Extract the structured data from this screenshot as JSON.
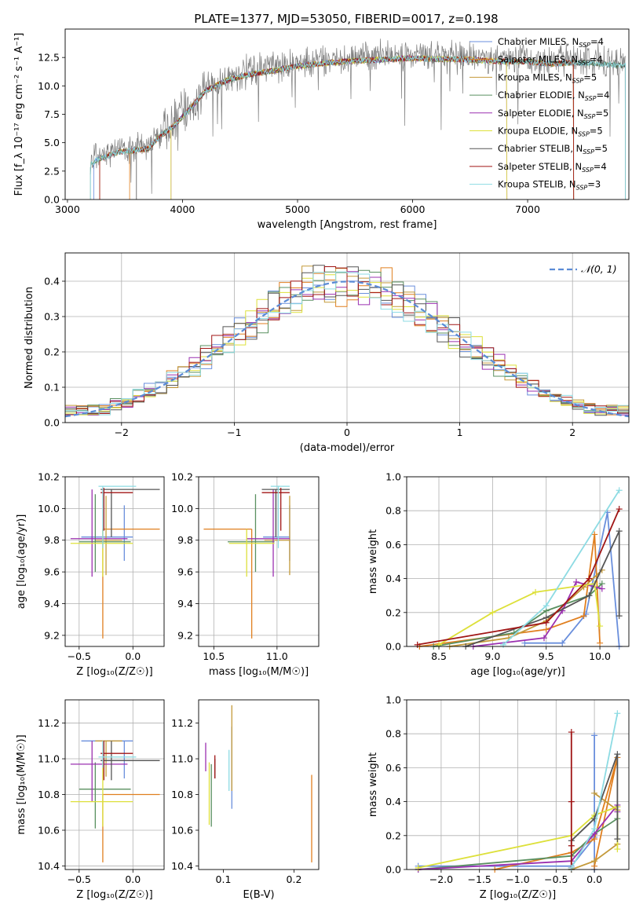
{
  "figure_title": "PLATE=1377, MJD=53050, FIBERID=0017, z=0.198",
  "colors": {
    "Chabrier MILES": "#6a8fdc",
    "Salpeter MILES": "#e07f1f",
    "Kroupa MILES": "#c49a3a",
    "Chabrier ELODIE": "#5a9060",
    "Salpeter ELODIE": "#9b30b0",
    "Kroupa ELODIE": "#dde03a",
    "Chabrier STELIB": "#555555",
    "Salpeter STELIB": "#a01515",
    "Kroupa STELIB": "#8ddbe3",
    "normal": "#5b8bd6",
    "grid": "#b0b0b0",
    "data": "#7f7f7f"
  },
  "chart_data": [
    {
      "type": "line",
      "title": "PLATE=1377, MJD=53050, FIBERID=0017, z=0.198",
      "xlabel": "wavelength [Angstrom, rest frame]",
      "ylabel": "Flux [f_λ 10⁻¹⁷ erg cm⁻² s⁻¹ A⁻¹]",
      "xlim": [
        2980,
        7880
      ],
      "ylim": [
        0,
        15
      ],
      "xticks": [
        "3000",
        "4000",
        "5000",
        "6000",
        "7000"
      ],
      "yticks": [
        "0.0",
        "2.5",
        "5.0",
        "7.5",
        "10.0",
        "12.5"
      ],
      "grid": false,
      "legend_position": "right",
      "legend": [
        {
          "label": "Chabrier MILES, N",
          "n": "4"
        },
        {
          "label": "Salpeter MILES, N",
          "n": "4"
        },
        {
          "label": "Kroupa MILES, N",
          "n": "5"
        },
        {
          "label": "Chabrier ELODIE, N",
          "n": "4"
        },
        {
          "label": "Salpeter ELODIE, N",
          "n": "5"
        },
        {
          "label": "Kroupa ELODIE, N",
          "n": "5"
        },
        {
          "label": "Chabrier STELIB, N",
          "n": "5"
        },
        {
          "label": "Salpeter STELIB, N",
          "n": "4"
        },
        {
          "label": "Kroupa STELIB, N",
          "n": "3"
        }
      ],
      "legend_sub": "SSP",
      "legend_eq": "=",
      "spectrum_envelope": {
        "x": [
          3200,
          3250,
          3400,
          3500,
          3600,
          3700,
          3800,
          3900,
          4000,
          4200,
          4400,
          4600,
          4800,
          5000,
          5200,
          5400,
          5600,
          5800,
          6000,
          6200,
          6400,
          6600,
          6800,
          7000,
          7200,
          7400,
          7600,
          7850
        ],
        "y": [
          3.3,
          3.7,
          4.3,
          4.5,
          4.6,
          4.7,
          5.8,
          6.5,
          7.5,
          9.8,
          10.8,
          11.3,
          11.6,
          12.0,
          12.2,
          12.4,
          12.5,
          12.6,
          12.7,
          12.6,
          12.6,
          12.5,
          12.4,
          12.4,
          12.2,
          12.3,
          12.2,
          12.0
        ]
      },
      "model_ranges": [
        [
          3230,
          7400
        ],
        [
          3540,
          7400
        ],
        [
          3280,
          7400
        ],
        [
          3200,
          7850
        ],
        [
          3900,
          6820
        ],
        [
          3900,
          6820
        ],
        [
          3600,
          7850
        ],
        [
          3280,
          7400
        ],
        [
          3200,
          7850
        ]
      ]
    },
    {
      "type": "bar",
      "title": "",
      "xlabel": "(data-model)/error",
      "ylabel": "Normed distribution",
      "xlim": [
        -2.5,
        2.5
      ],
      "ylim": [
        0,
        0.48
      ],
      "xticks": [
        "−2",
        "−1",
        "0",
        "1",
        "2"
      ],
      "yticks": [
        "0.0",
        "0.1",
        "0.2",
        "0.3",
        "0.4"
      ],
      "grid": true,
      "legend": [
        "𝒩(0, 1)"
      ],
      "legend_position": "top-right",
      "bin_width": 0.1,
      "bin_start": -2.5
    },
    {
      "type": "scatter",
      "xlabel": "Z [log₁₀(Z/Z☉)]",
      "ylabel": "age  [log₁₀(age/yr)]",
      "xlim": [
        -0.63,
        0.29
      ],
      "ylim": [
        9.13,
        10.2
      ],
      "xticks": [
        "−0.5",
        "0.0"
      ],
      "yticks": [
        "9.2",
        "9.4",
        "9.6",
        "9.8",
        "10.0",
        "10.2"
      ],
      "grid": true
    },
    {
      "type": "scatter",
      "xlabel": "mass [log₁₀(M/M☉)]",
      "ylabel": "",
      "xlim": [
        10.38,
        11.33
      ],
      "ylim": [
        9.13,
        10.2
      ],
      "xticks": [
        "10.5",
        "11.0"
      ],
      "yticks": [
        "9.2",
        "9.4",
        "9.6",
        "9.8",
        "10.0",
        "10.2"
      ],
      "grid": true
    },
    {
      "type": "line",
      "xlabel": "age  [log₁₀(age/yr)]",
      "ylabel": "mass weight",
      "xlim": [
        8.2,
        10.27
      ],
      "ylim": [
        0,
        1.0
      ],
      "xticks": [
        "8.5",
        "9.0",
        "9.5",
        "10.0"
      ],
      "yticks": [
        "0.0",
        "0.2",
        "0.4",
        "0.6",
        "0.8",
        "1.0"
      ],
      "grid": true
    },
    {
      "type": "scatter",
      "xlabel": "Z [log₁₀(Z/Z☉)]",
      "ylabel": "mass [log₁₀(M/M☉)]",
      "xlim": [
        -0.63,
        0.29
      ],
      "ylim": [
        10.38,
        11.33
      ],
      "xticks": [
        "−0.5",
        "0.0"
      ],
      "yticks": [
        "10.4",
        "10.6",
        "10.8",
        "11.0",
        "11.2"
      ],
      "grid": true
    },
    {
      "type": "scatter",
      "xlabel": "E(B-V)",
      "ylabel": "",
      "xlim": [
        0.065,
        0.235
      ],
      "ylim": [
        10.38,
        11.33
      ],
      "xticks": [
        "0.1",
        "0.2"
      ],
      "yticks": [
        "10.4",
        "10.6",
        "10.8",
        "11.0",
        "11.2"
      ],
      "grid": false
    },
    {
      "type": "line",
      "xlabel": "Z [log₁₀(Z/Z☉)]",
      "ylabel": "mass weight",
      "xlim": [
        -2.45,
        0.45
      ],
      "ylim": [
        0,
        1.0
      ],
      "xticks": [
        "−2.0",
        "−1.5",
        "−1.0",
        "−0.5",
        "0.0"
      ],
      "yticks": [
        "0.0",
        "0.2",
        "0.4",
        "0.6",
        "0.8",
        "1.0"
      ],
      "grid": true
    }
  ],
  "pointest": {
    "order": [
      "Chabrier MILES",
      "Salpeter MILES",
      "Kroupa MILES",
      "Chabrier ELODIE",
      "Salpeter ELODIE",
      "Kroupa ELODIE",
      "Chabrier STELIB",
      "Salpeter STELIB",
      "Kroupa STELIB"
    ],
    "Z": [
      [
        -0.08,
        -0.48,
        0.0
      ],
      [
        -0.28,
        -0.28,
        0.25
      ],
      [
        -0.25,
        -0.35,
        -0.1
      ],
      [
        -0.35,
        -0.5,
        -0.02
      ],
      [
        -0.38,
        -0.58,
        -0.05
      ],
      [
        -0.28,
        -0.58,
        0.0
      ],
      [
        -0.2,
        -0.3,
        0.25
      ],
      [
        -0.27,
        -0.3,
        0.0
      ],
      [
        -0.28,
        -0.32,
        0.03
      ]
    ],
    "age": [
      [
        9.82,
        9.67,
        10.02
      ],
      [
        9.87,
        9.18,
        9.87
      ],
      [
        9.8,
        9.58,
        10.08
      ],
      [
        9.79,
        9.6,
        10.09
      ],
      [
        9.81,
        9.57,
        10.12
      ],
      [
        9.78,
        9.57,
        9.87
      ],
      [
        10.12,
        9.82,
        10.12
      ],
      [
        10.1,
        9.86,
        10.13
      ],
      [
        10.14,
        9.75,
        10.14
      ]
    ],
    "mass": [
      [
        11.1,
        10.89,
        11.1
      ],
      [
        10.8,
        10.42,
        10.8
      ],
      [
        11.1,
        10.9,
        11.1
      ],
      [
        10.83,
        10.61,
        10.98
      ],
      [
        10.97,
        10.76,
        11.1
      ],
      [
        10.76,
        10.62,
        10.98
      ],
      [
        10.99,
        10.88,
        11.1
      ],
      [
        11.03,
        10.88,
        11.1
      ],
      [
        11.01,
        10.95,
        11.1
      ]
    ],
    "ebv": [
      [
        0.112,
        10.72,
        11.18
      ],
      [
        0.225,
        10.42,
        10.91
      ],
      [
        0.112,
        10.82,
        11.3
      ],
      [
        0.083,
        10.62,
        10.97
      ],
      [
        0.075,
        10.93,
        11.09
      ],
      [
        0.08,
        10.63,
        10.98
      ],
      [
        0.088,
        10.89,
        11.0
      ],
      [
        0.088,
        10.89,
        11.02
      ],
      [
        0.108,
        10.82,
        11.05
      ]
    ]
  },
  "weights": {
    "Chabrier MILES": {
      "age": [
        9.3,
        9.65,
        9.87,
        10.07,
        10.18
      ],
      "Z": [
        -2.3,
        -0.3,
        0.0,
        0.0,
        0.0
      ],
      "w": [
        0.02,
        0.02,
        0.19,
        0.79,
        0.0
      ]
    },
    "Salpeter MILES": {
      "age": [
        8.32,
        9.5,
        9.85,
        9.95,
        10.0
      ],
      "Z": [
        -1.3,
        -0.3,
        0.0,
        0.3,
        0.0
      ],
      "w": [
        0.0,
        0.1,
        0.18,
        0.66,
        0.02
      ]
    },
    "Kroupa MILES": {
      "age": [
        8.6,
        9.15,
        9.5,
        9.85,
        10.02
      ],
      "Z": [
        -0.3,
        0.0,
        0.3,
        0.3,
        0.0
      ],
      "w": [
        0.0,
        0.05,
        0.15,
        0.35,
        0.45
      ]
    },
    "Chabrier ELODIE": {
      "age": [
        8.45,
        9.2,
        9.5,
        9.9,
        10.02
      ],
      "Z": [
        -2.3,
        -0.3,
        0.0,
        0.3,
        0.3
      ],
      "w": [
        0.0,
        0.08,
        0.21,
        0.3,
        0.37
      ]
    },
    "Salpeter ELODIE": {
      "age": [
        8.82,
        9.48,
        9.65,
        9.78,
        10.02
      ],
      "Z": [
        -2.3,
        -0.3,
        0.0,
        0.3,
        0.3
      ],
      "w": [
        0.0,
        0.05,
        0.21,
        0.38,
        0.34
      ]
    },
    "Kroupa ELODIE": {
      "age": [
        8.5,
        9.0,
        9.4,
        9.95,
        10.0
      ],
      "Z": [
        -2.3,
        -0.3,
        0.0,
        0.3,
        0.3
      ],
      "w": [
        0.01,
        0.2,
        0.32,
        0.37,
        0.12
      ]
    },
    "Chabrier STELIB": {
      "age": [
        8.75,
        9.5,
        9.9,
        10.18,
        10.18
      ],
      "Z": [
        -0.3,
        -0.3,
        0.0,
        0.3,
        0.3
      ],
      "w": [
        0.0,
        0.17,
        0.3,
        0.68,
        0.18
      ]
    },
    "Salpeter STELIB": {
      "age": [
        8.3,
        9.5,
        9.9,
        10.18
      ],
      "Z": [
        -0.3,
        -0.3,
        -0.3,
        -0.3
      ],
      "w": [
        0.01,
        0.14,
        0.4,
        0.81
      ]
    },
    "Kroupa STELIB": {
      "age": [
        9.1,
        9.5,
        10.18
      ],
      "Z": [
        -0.3,
        0.0,
        0.3
      ],
      "w": [
        0.01,
        0.24,
        0.92
      ]
    },
    "Salpeter STELIB extra": {
      "age": [],
      "Z": [],
      "w": []
    }
  }
}
